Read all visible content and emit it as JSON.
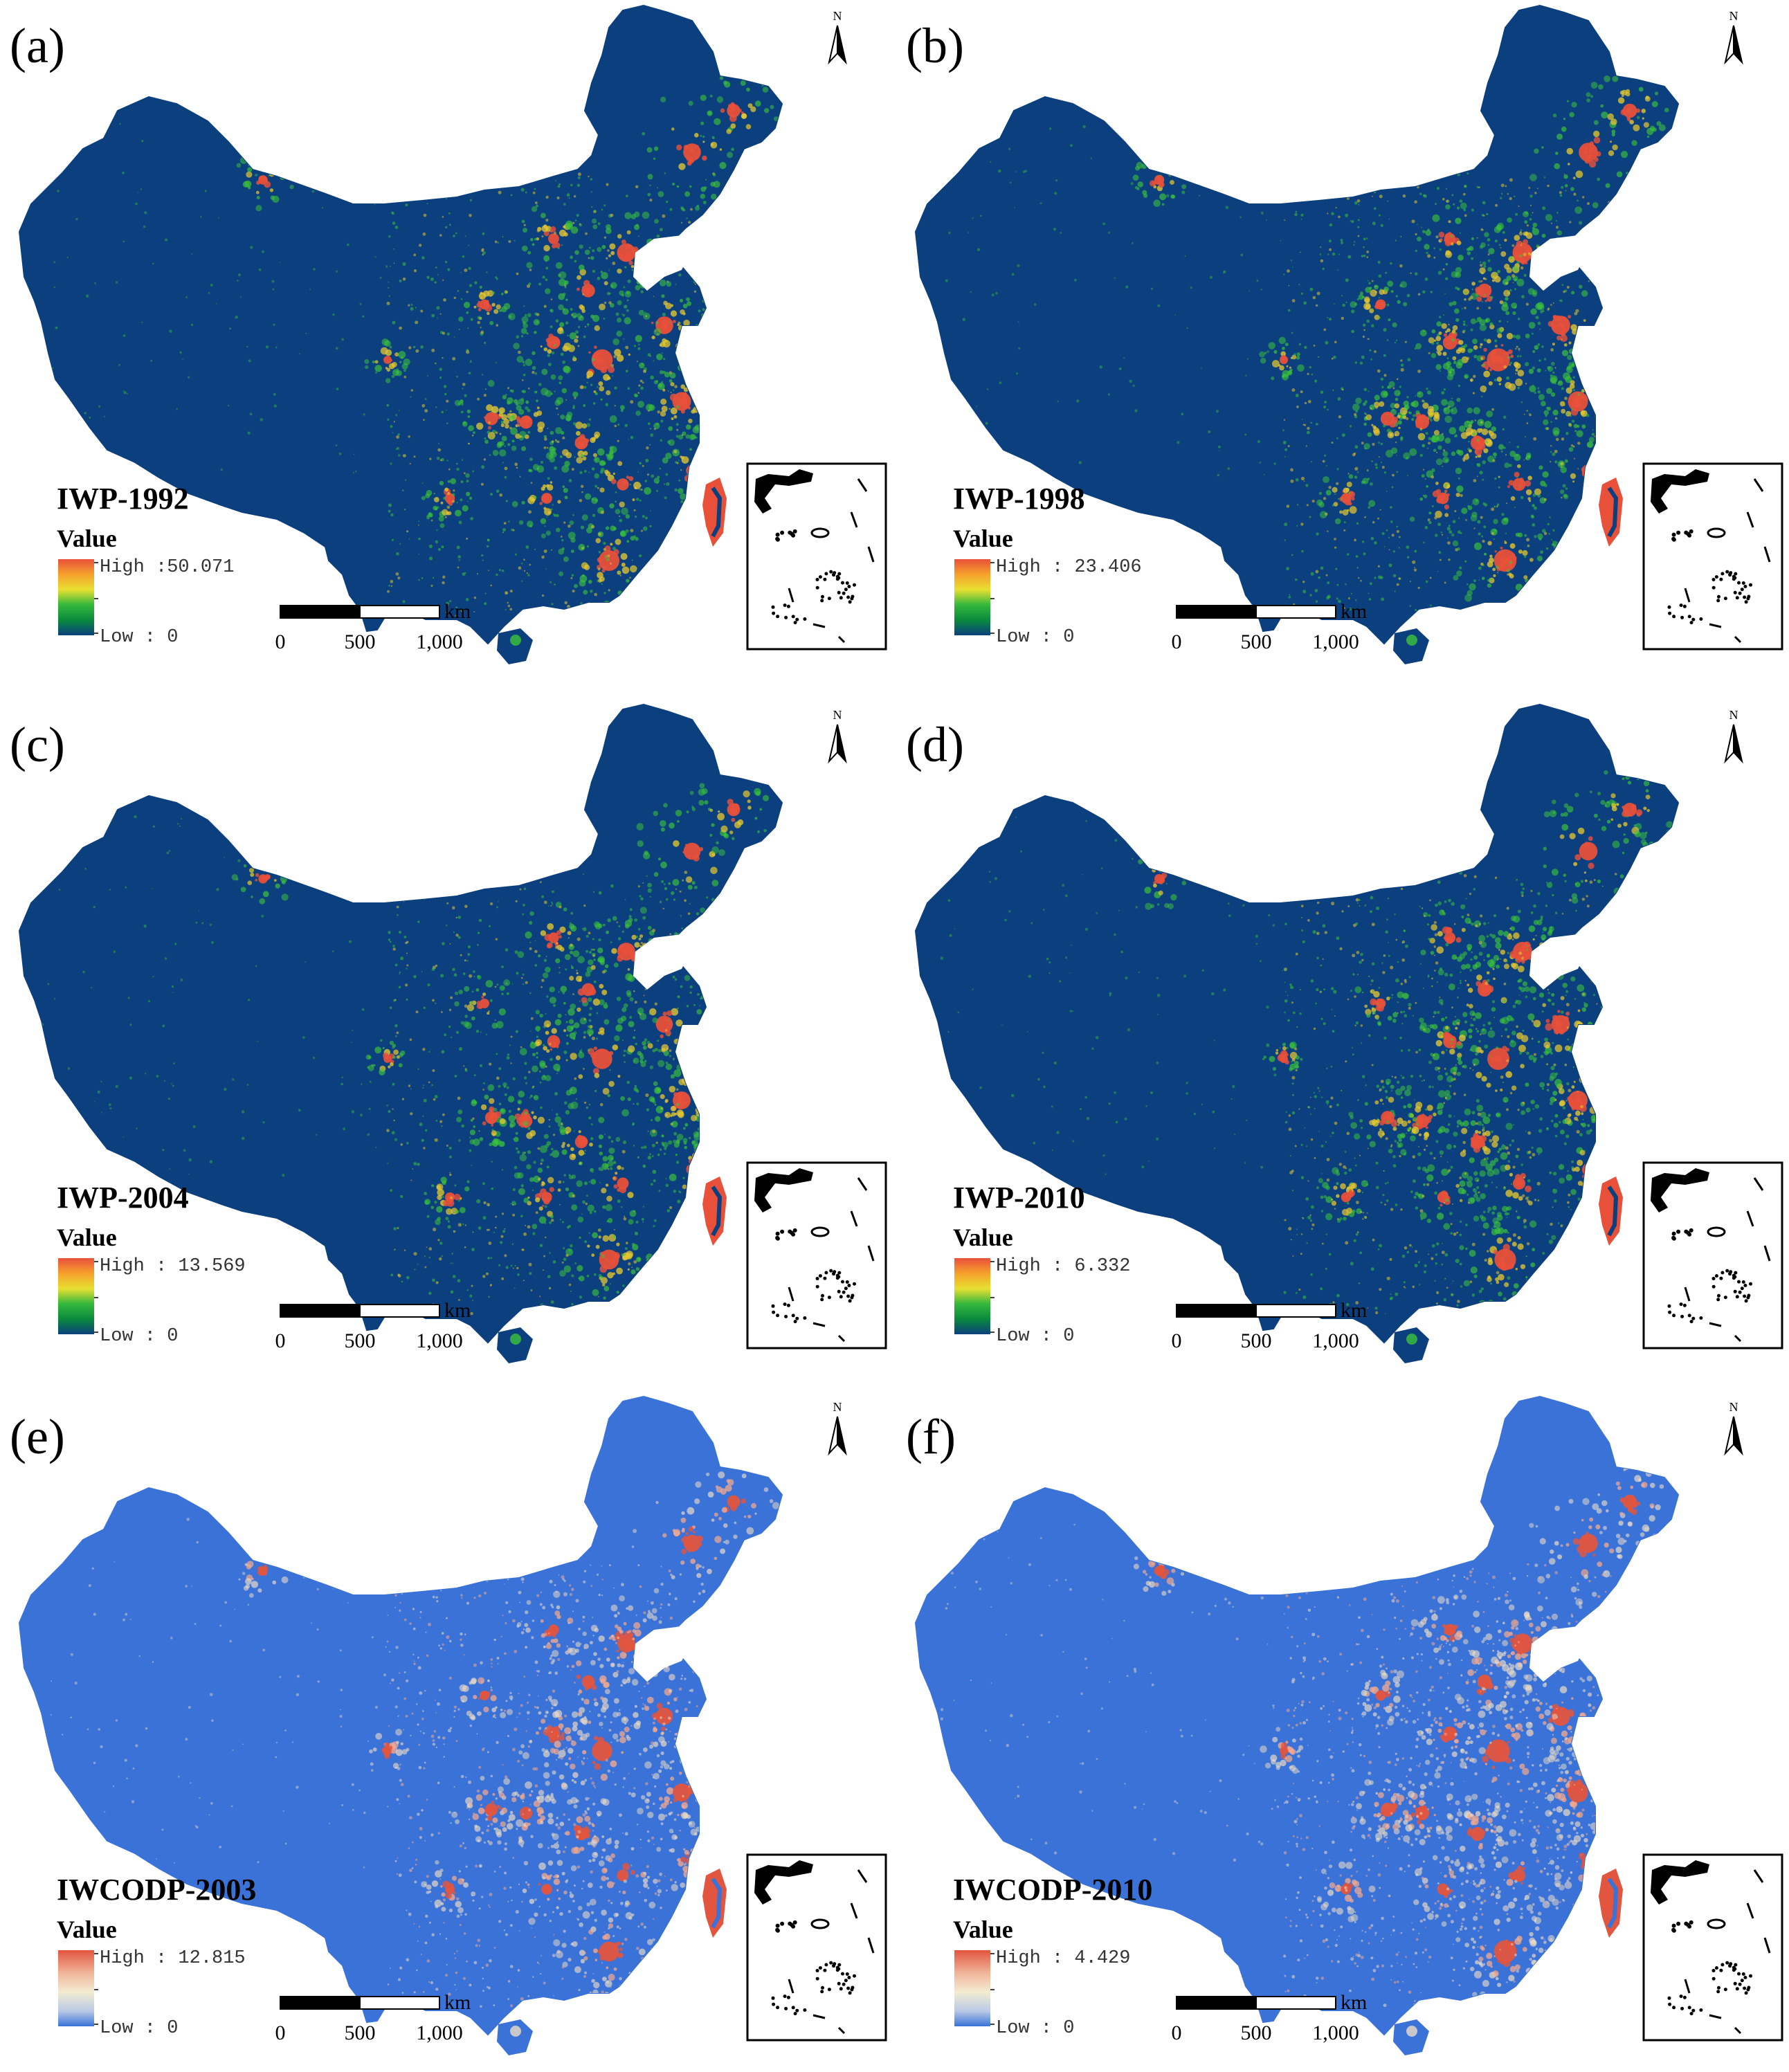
{
  "north_label": "N",
  "scale_bar": {
    "unit": "km",
    "ticks": [
      "0",
      "500",
      "1,000"
    ]
  },
  "legend_heading": "Value",
  "panels": [
    {
      "label": "(a)",
      "title": "IWP-1992",
      "high": "High :50.071",
      "low": "Low : 0",
      "palette": "iwp",
      "intensity": 0.9
    },
    {
      "label": "(b)",
      "title": "IWP-1998",
      "high": "High : 23.406",
      "low": "Low : 0",
      "palette": "iwp",
      "intensity": 1.0
    },
    {
      "label": "(c)",
      "title": "IWP-2004",
      "high": "High : 13.569",
      "low": "Low : 0",
      "palette": "iwp",
      "intensity": 0.85
    },
    {
      "label": "(d)",
      "title": "IWP-2010",
      "high": "High : 6.332",
      "low": "Low : 0",
      "palette": "iwp",
      "intensity": 0.95
    },
    {
      "label": "(e)",
      "title": "IWCODP-2003",
      "high": "High : 12.815",
      "low": "Low : 0",
      "palette": "iwcodp",
      "intensity": 0.85
    },
    {
      "label": "(f)",
      "title": "IWCODP-2010",
      "high": "High : 4.429",
      "low": "Low : 0",
      "palette": "iwcodp",
      "intensity": 1.0
    }
  ],
  "colors": {
    "iwp": {
      "base": "#0b3f7e",
      "ramp": [
        "#e8503a",
        "#f6a12d",
        "#e8e031",
        "#34b83c",
        "#0a8a3c",
        "#0b3f7e"
      ],
      "hot": "#e8503a",
      "mid": "#3cc43a",
      "warm": "#e6c82e"
    },
    "iwcodp": {
      "base": "#3a72d8",
      "ramp": [
        "#e2553f",
        "#f0b59a",
        "#f3ecd2",
        "#b8c9e6",
        "#3a72d8"
      ],
      "hot": "#e2553f",
      "mid": "#ecdcc6",
      "warm": "#f2a98f"
    }
  }
}
